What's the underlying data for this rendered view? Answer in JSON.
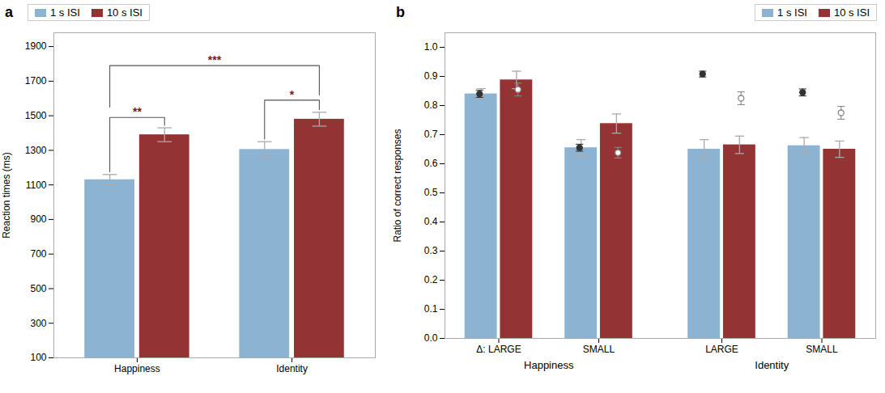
{
  "chart_data": [
    {
      "type": "bar",
      "title": "a",
      "categories": [
        "Happiness",
        "Identity"
      ],
      "series": [
        {
          "name": "1 s ISI",
          "color": "#8db3d3",
          "values": [
            1130,
            1305
          ],
          "errors": [
            30,
            45
          ]
        },
        {
          "name": "10 s ISI",
          "color": "#943333",
          "values": [
            1390,
            1480
          ],
          "errors": [
            40,
            40
          ]
        }
      ],
      "ylabel": "Reaction times (ms)",
      "ylim": [
        100,
        1980
      ],
      "yticks": [
        100,
        300,
        500,
        700,
        900,
        1100,
        1300,
        1500,
        1700,
        1900
      ],
      "grid": false,
      "legend": "upper left",
      "annotations": [
        {
          "text": "**",
          "color": "#7a1a1a",
          "y": 1490,
          "from": {
            "category": "Happiness",
            "series": "1 s ISI"
          },
          "to": {
            "category": "Happiness",
            "series": "10 s ISI"
          }
        },
        {
          "text": "*",
          "color": "#7a1a1a",
          "y": 1590,
          "from": {
            "category": "Identity",
            "series": "1 s ISI"
          },
          "to": {
            "category": "Identity",
            "series": "10 s ISI"
          }
        },
        {
          "text": "***",
          "color": "#7a1a1a",
          "y": 1790,
          "from": {
            "category": "Happiness",
            "series": "1 s ISI",
            "y": 1550
          },
          "to": {
            "category": "Identity",
            "series": "10 s ISI",
            "y": 1620
          }
        }
      ]
    },
    {
      "type": "bar",
      "title": "b",
      "categories": [
        "Δ: LARGE",
        "SMALL",
        "LARGE",
        "SMALL"
      ],
      "series": [
        {
          "name": "1 s ISI",
          "color": "#8db3d3",
          "values": [
            0.84,
            0.655,
            0.65,
            0.662
          ],
          "errors": [
            0.018,
            0.028,
            0.033,
            0.028
          ]
        },
        {
          "name": "10 s ISI",
          "color": "#943333",
          "values": [
            0.888,
            0.738,
            0.665,
            0.65
          ],
          "errors": [
            0.03,
            0.033,
            0.03,
            0.028
          ]
        },
        {
          "type": "scatter",
          "marker": "filled_circle",
          "color": "#333333",
          "values": [
            0.84,
            0.655,
            0.908,
            0.845
          ],
          "errors": [
            0.012,
            0.012,
            0.01,
            0.012
          ]
        },
        {
          "type": "scatter",
          "marker": "open_circle",
          "color": "#888888",
          "values": [
            0.855,
            0.638,
            0.825,
            0.775
          ],
          "errors": [
            0.022,
            0.018,
            0.022,
            0.022
          ]
        }
      ],
      "ylabel": "Ratio of correct responses",
      "ylim": [
        0.0,
        1.05
      ],
      "yticks": [
        {
          "value": 0,
          "label": "0.0"
        },
        0.1,
        0.2,
        0.3,
        0.4,
        0.5,
        0.6,
        0.7,
        0.8,
        0.9,
        {
          "value": 1,
          "label": "1.0"
        }
      ],
      "grid": false,
      "legend": "upper right",
      "annotations": [
        {
          "text": "Happiness",
          "categories": [
            0,
            1
          ]
        },
        {
          "text": "Identity",
          "categories": [
            2,
            3
          ]
        }
      ]
    }
  ]
}
